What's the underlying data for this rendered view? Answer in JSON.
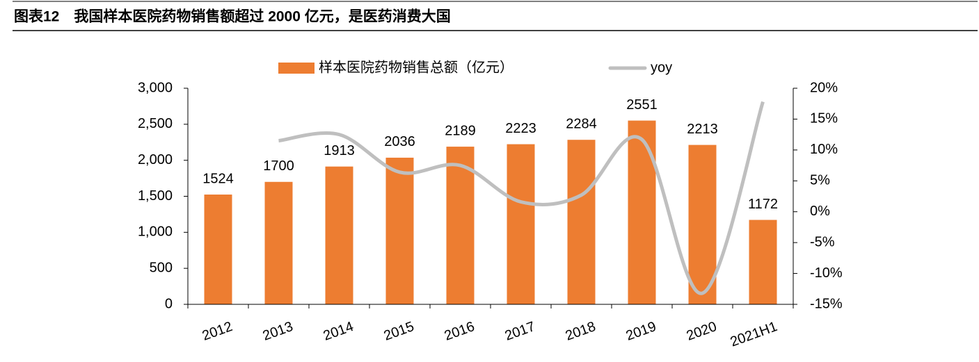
{
  "chart_data": {
    "type": "bar_line",
    "title": "图表12　我国样本医院药物销售额超过 2000 亿元，是医药消费大国",
    "categories": [
      "2012",
      "2013",
      "2014",
      "2015",
      "2016",
      "2017",
      "2018",
      "2019",
      "2020",
      "2021H1"
    ],
    "series": [
      {
        "name": "样本医院药物销售总额（亿元）",
        "type": "bar",
        "color": "#ED7D31",
        "values": [
          1524,
          1700,
          1913,
          2036,
          2189,
          2223,
          2284,
          2551,
          2213,
          1172
        ]
      },
      {
        "name": "yoy",
        "type": "line",
        "axis": "y2",
        "color": "#BFBFBF",
        "values": [
          null,
          11.5,
          12.5,
          6.4,
          7.5,
          1.6,
          2.7,
          11.7,
          -13.2,
          17.8
        ]
      }
    ],
    "ylim": [
      0,
      3000
    ],
    "yticks": [
      0,
      500,
      {
        "value": 1000,
        "label": "1,000"
      },
      {
        "value": 1500,
        "label": "1,500"
      },
      {
        "value": 2000,
        "label": "2,000"
      },
      {
        "value": 2500,
        "label": "2,500"
      },
      {
        "value": 3000,
        "label": "3,000"
      }
    ],
    "y2lim": [
      -15,
      20
    ],
    "y2ticks": [
      {
        "value": -15,
        "label": "-15%"
      },
      {
        "value": -10,
        "label": "-10%"
      },
      {
        "value": -5,
        "label": "-5%"
      },
      {
        "value": 0,
        "label": "0%"
      },
      {
        "value": 5,
        "label": "5%"
      },
      {
        "value": 10,
        "label": "10%"
      },
      {
        "value": 15,
        "label": "15%"
      },
      {
        "value": 20,
        "label": "20%"
      }
    ],
    "legend": "top"
  }
}
